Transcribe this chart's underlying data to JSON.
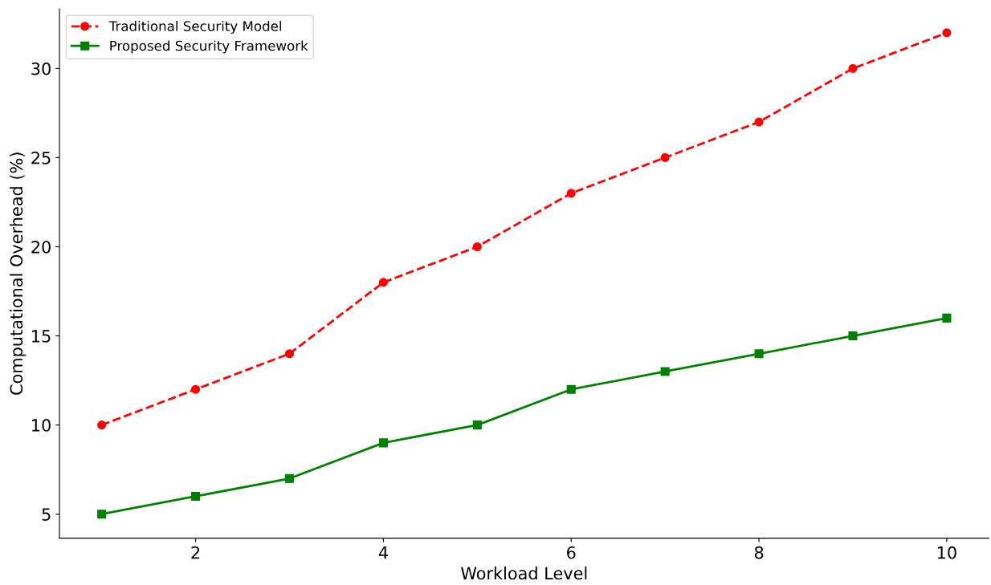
{
  "chart_data": {
    "type": "line",
    "xlabel": "Workload Level",
    "ylabel": "Computational Overhead (%)",
    "x": [
      1,
      2,
      3,
      4,
      5,
      6,
      7,
      8,
      9,
      10
    ],
    "series": [
      {
        "name": "Traditional Security Model",
        "color": "#ff0000",
        "marker": "circle",
        "line_style": "dashed",
        "values": [
          10,
          12,
          14,
          18,
          20,
          23,
          25,
          27,
          30,
          32
        ]
      },
      {
        "name": "Proposed Security Framework",
        "color": "#008000",
        "marker": "square",
        "line_style": "solid",
        "values": [
          5,
          6,
          7,
          9,
          10,
          12,
          13,
          14,
          15,
          16
        ]
      }
    ],
    "xlim": [
      0.55,
      10.45
    ],
    "xticks": [
      2,
      4,
      6,
      8,
      10
    ],
    "ylim": [
      3.65,
      33.35
    ],
    "yticks": [
      5,
      10,
      15,
      20,
      25,
      30
    ],
    "grid": false,
    "legend": "top left"
  }
}
